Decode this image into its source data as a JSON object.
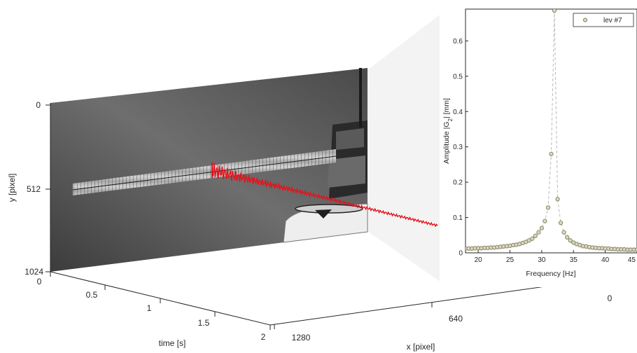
{
  "colors": {
    "axis": "#262626",
    "photo_dark": "#3a3a3a",
    "photo_light": "#8a8a8a",
    "trace": "#e8101a",
    "marker_edge": "#8c8a64",
    "marker_fill": "#dad9c8",
    "dashed_line": "#b9b9b9"
  },
  "scene3d": {
    "y_axis": {
      "label": "y [pixel]",
      "ticks": [
        "0",
        "512",
        "1024"
      ]
    },
    "time_axis": {
      "label": "time [s]",
      "ticks": [
        "0",
        "0.5",
        "1",
        "1.5",
        "2"
      ]
    },
    "x_axis": {
      "label": "x [pixel]",
      "ticks": [
        "1280",
        "640",
        "0"
      ]
    },
    "image_plane": "high-speed camera frame: cantilever beam clamped in fixture above shaker head",
    "trace": "displacement history of tracked point along time axis"
  },
  "chart_data": {
    "type": "scatter",
    "xlabel": "Frequency [Hz]",
    "ylabel_main": "Amplitude |G",
    "ylabel_sub": "2",
    "ylabel_tail": "| [mm]",
    "xlim": [
      18,
      45
    ],
    "ylim": [
      0,
      0.69
    ],
    "xticks": [
      "20",
      "25",
      "30",
      "35",
      "40",
      "45"
    ],
    "yticks": [
      "0",
      "0.1",
      "0.2",
      "0.3",
      "0.4",
      "0.5",
      "0.6"
    ],
    "grid": false,
    "legend_position": "top-right",
    "series": [
      {
        "name": "lev #7",
        "marker": "circle",
        "line": "dashed",
        "x": [
          18,
          18.5,
          19,
          19.5,
          20,
          20.5,
          21,
          21.5,
          22,
          22.5,
          23,
          23.5,
          24,
          24.5,
          25,
          25.5,
          26,
          26.5,
          27,
          27.5,
          28,
          28.5,
          29,
          29.5,
          30,
          30.5,
          31,
          31.5,
          32,
          32.5,
          33,
          33.5,
          34,
          34.5,
          35,
          35.5,
          36,
          36.5,
          37,
          37.5,
          38,
          38.5,
          39,
          39.5,
          40,
          40.5,
          41,
          41.5,
          42,
          42.5,
          43,
          43.5,
          44,
          44.5,
          45
        ],
        "y": [
          0.012,
          0.012,
          0.012,
          0.013,
          0.013,
          0.013,
          0.014,
          0.014,
          0.015,
          0.015,
          0.016,
          0.017,
          0.018,
          0.019,
          0.02,
          0.022,
          0.023,
          0.025,
          0.028,
          0.031,
          0.035,
          0.04,
          0.048,
          0.058,
          0.07,
          0.09,
          0.128,
          0.28,
          0.686,
          0.152,
          0.085,
          0.058,
          0.044,
          0.035,
          0.029,
          0.025,
          0.022,
          0.019,
          0.018,
          0.016,
          0.015,
          0.014,
          0.013,
          0.013,
          0.012,
          0.012,
          0.011,
          0.011,
          0.01,
          0.01,
          0.01,
          0.009,
          0.009,
          0.009,
          0.009
        ]
      }
    ]
  }
}
